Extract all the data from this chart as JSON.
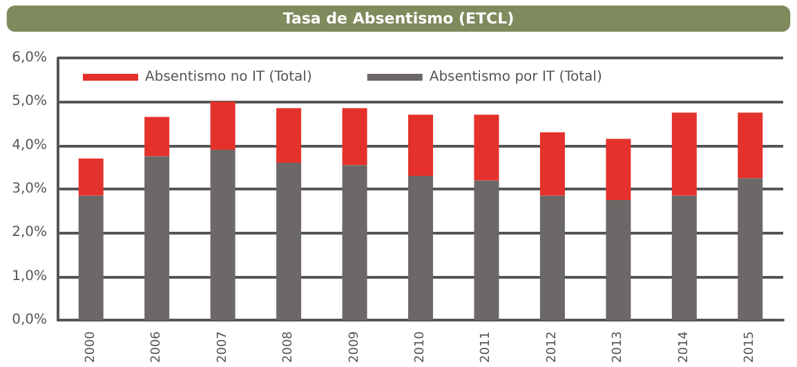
{
  "chart_data": {
    "type": "bar",
    "title": "Tasa de Absentismo (ETCL)",
    "stacked": true,
    "categories": [
      "2000",
      "2006",
      "2007",
      "2008",
      "2009",
      "2010",
      "2011",
      "2012",
      "2013",
      "2014",
      "2015"
    ],
    "series": [
      {
        "name": "Absentismo por IT (Total)",
        "color": "#6d6868",
        "values": [
          2.85,
          3.75,
          3.9,
          3.6,
          3.55,
          3.3,
          3.2,
          2.85,
          2.75,
          2.85,
          3.25
        ]
      },
      {
        "name": "Absentismo no IT (Total)",
        "color": "#e4312b",
        "values": [
          0.85,
          0.9,
          1.1,
          1.25,
          1.3,
          1.4,
          1.5,
          1.45,
          1.4,
          1.9,
          1.5
        ]
      }
    ],
    "ylim": [
      0,
      6
    ],
    "yticks": [
      {
        "value": 0,
        "label": "0,0%"
      },
      {
        "value": 1,
        "label": "1,0%"
      },
      {
        "value": 2,
        "label": "2,0%"
      },
      {
        "value": 3,
        "label": "3,0%"
      },
      {
        "value": 4,
        "label": "4,0%"
      },
      {
        "value": 5,
        "label": "5,0%"
      },
      {
        "value": 6,
        "label": "6,0%"
      }
    ],
    "grid": "y",
    "legend": "top left"
  }
}
